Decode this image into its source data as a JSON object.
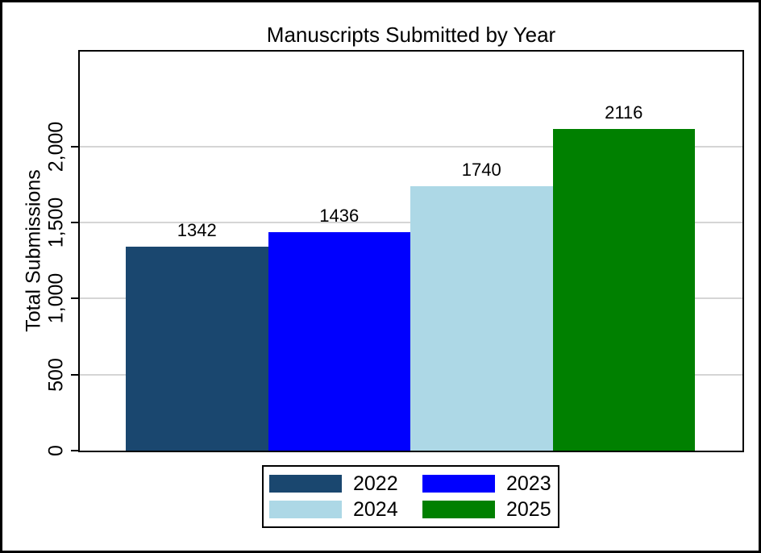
{
  "chart_data": {
    "type": "bar",
    "title": "Manuscripts Submitted by Year",
    "xlabel": "",
    "ylabel": "Total Submissions",
    "categories": [
      "2022",
      "2023",
      "2024",
      "2025"
    ],
    "values": [
      1342,
      1436,
      1740,
      2116
    ],
    "bar_value_labels": [
      "1342",
      "1436",
      "1740",
      "2116"
    ],
    "bar_colors": [
      "#1A476F",
      "#0000FF",
      "#ADD8E6",
      "#008000"
    ],
    "ylim": [
      0,
      2625
    ],
    "yticks": [
      0,
      500,
      1000,
      1500,
      2000
    ],
    "ytick_labels": [
      "0",
      "500",
      "1,000",
      "1,500",
      "2,000"
    ],
    "grid": true,
    "gridline_color": "#D5D5D5",
    "axis_color": "#000000",
    "background_color": "#FFFFFF",
    "legend": {
      "position": "bottom",
      "columns": 2,
      "entries": [
        {
          "label": "2022",
          "color": "#1A476F"
        },
        {
          "label": "2023",
          "color": "#0000FF"
        },
        {
          "label": "2024",
          "color": "#ADD8E6"
        },
        {
          "label": "2025",
          "color": "#008000"
        }
      ]
    }
  }
}
